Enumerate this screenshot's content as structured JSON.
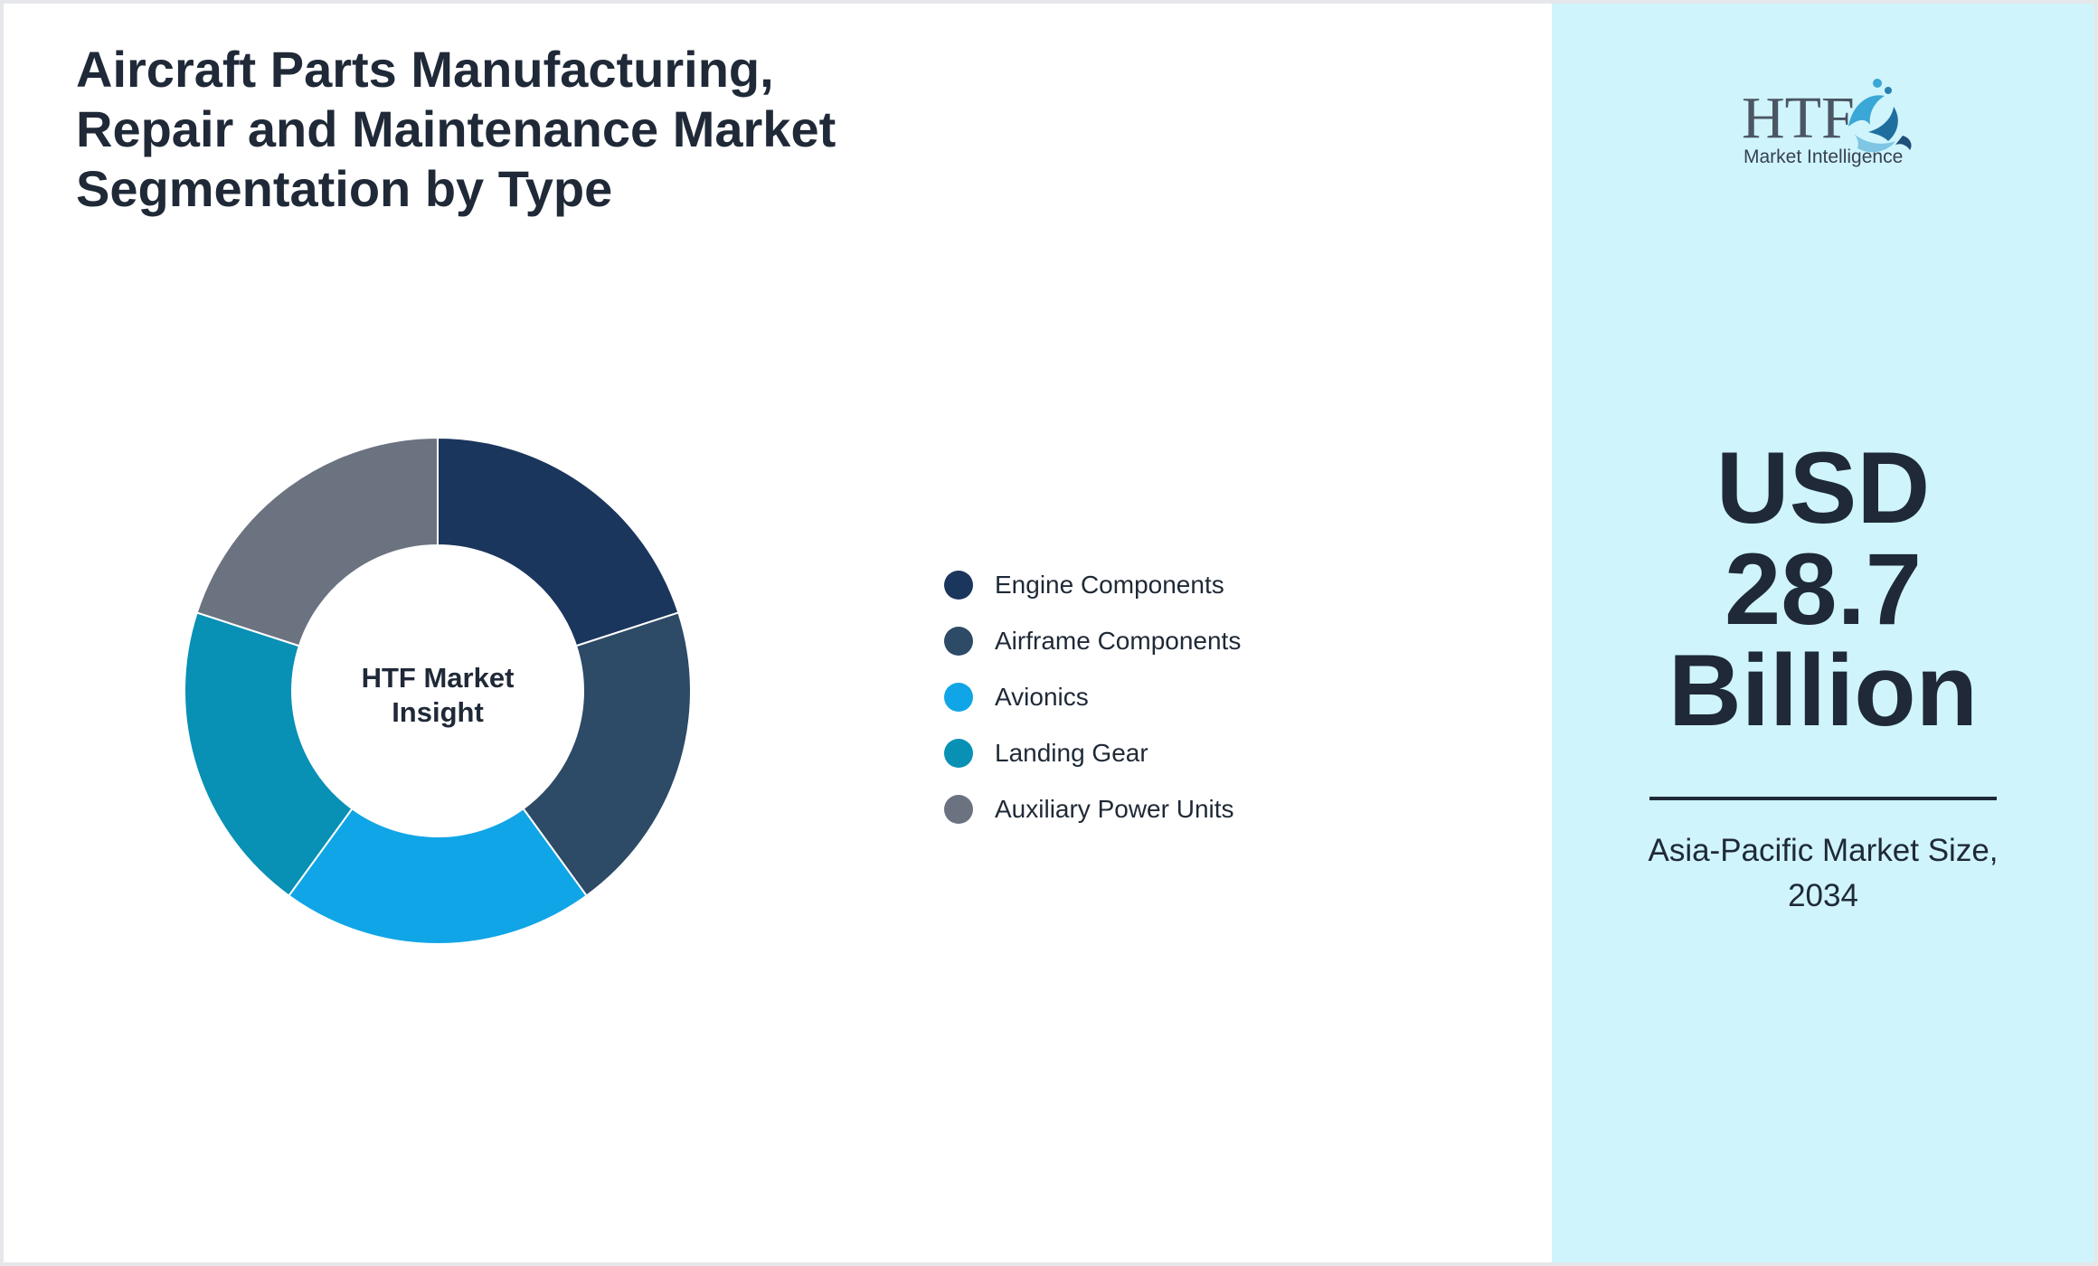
{
  "title_lines": [
    "Aircraft Parts Manufacturing,",
    "Repair and Maintenance Market",
    "Segmentation by Type"
  ],
  "chart_data": {
    "type": "pie",
    "variant": "donut",
    "title": "Aircraft Parts Manufacturing, Repair and Maintenance Market Segmentation by Type",
    "center_label_lines": [
      "HTF Market",
      "Insight"
    ],
    "legend_position": "right",
    "categories": [
      "Engine Components",
      "Airframe Components",
      "Avionics",
      "Landing Gear",
      "Auxiliary Power Units"
    ],
    "values": [
      20,
      20,
      20,
      20,
      20
    ],
    "colors": [
      "#1b365d",
      "#2d4a66",
      "#10a5e6",
      "#0890b5",
      "#6b7280"
    ]
  },
  "logo": {
    "letters": "HTF",
    "tagline": "Market Intelligence"
  },
  "market_value_lines": [
    "USD",
    "28.7",
    "Billion"
  ],
  "market_caption_lines": [
    "Asia-Pacific Market Size,",
    "2034"
  ],
  "theme": {
    "text": "#1f2937",
    "right_panel_bg": "#cff4fc"
  }
}
